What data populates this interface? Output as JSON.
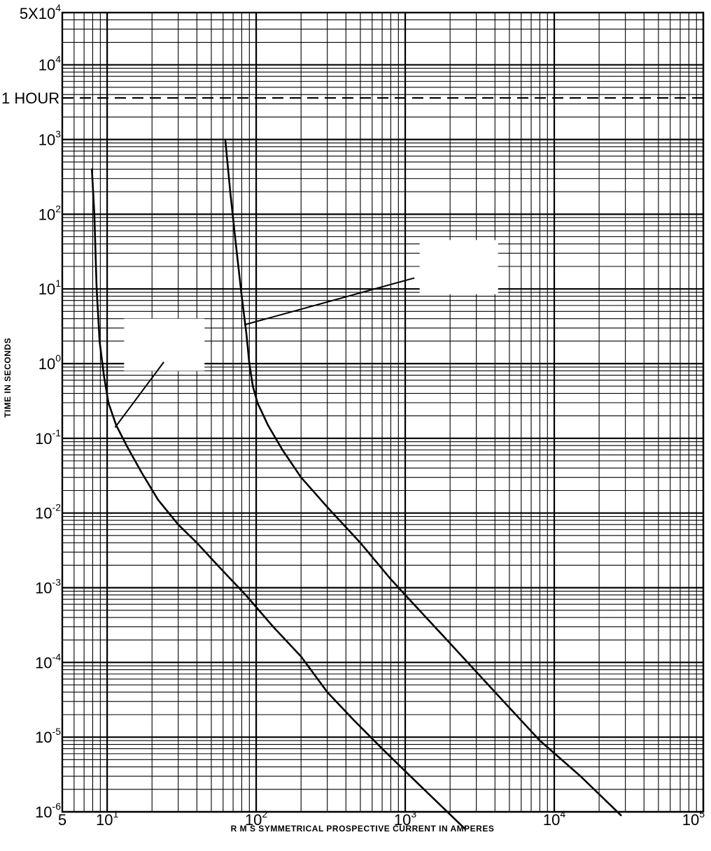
{
  "chart_data": {
    "type": "line",
    "xscale": "log",
    "yscale": "log",
    "xlim": [
      5,
      100000
    ],
    "ylim": [
      1e-06,
      50000
    ],
    "xlabel": "R M S SYMMETRICAL PROSPECTIVE CURRENT IN AMPERES",
    "ylabel": "TIME IN SECONDS",
    "grid": true,
    "x_ticks": [
      {
        "value": 5,
        "base": "5",
        "exp": ""
      },
      {
        "value": 10,
        "base": "10",
        "exp": "1"
      },
      {
        "value": 100,
        "base": "10",
        "exp": "2"
      },
      {
        "value": 1000,
        "base": "10",
        "exp": "3"
      },
      {
        "value": 10000,
        "base": "10",
        "exp": "4"
      },
      {
        "value": 100000,
        "base": "10",
        "exp": "5"
      }
    ],
    "y_ticks": [
      {
        "value": 50000,
        "base": "5X10",
        "exp": "4"
      },
      {
        "value": 10000,
        "base": "10",
        "exp": "4"
      },
      {
        "value": 1000,
        "base": "10",
        "exp": "3"
      },
      {
        "value": 100,
        "base": "10",
        "exp": "2"
      },
      {
        "value": 10,
        "base": "10",
        "exp": "1"
      },
      {
        "value": 1,
        "base": "10",
        "exp": "0"
      },
      {
        "value": 0.1,
        "base": "10",
        "exp": "-1"
      },
      {
        "value": 0.01,
        "base": "10",
        "exp": "-2"
      },
      {
        "value": 0.001,
        "base": "10",
        "exp": "-3"
      },
      {
        "value": 0.0001,
        "base": "10",
        "exp": "-4"
      },
      {
        "value": 1e-05,
        "base": "10",
        "exp": "-5"
      },
      {
        "value": 1e-06,
        "base": "10",
        "exp": "-6"
      }
    ],
    "reference_lines": [
      {
        "label": "1 HOUR",
        "y": 3600,
        "style": "dashed"
      }
    ],
    "series": [
      {
        "x": [
          7.9,
          8.2,
          8.5,
          8.9,
          9.5,
          10.2,
          11.5,
          13.5,
          17,
          22,
          30,
          40,
          55,
          85,
          130,
          200,
          300,
          450,
          700,
          1000,
          1500,
          2500
        ],
        "y": [
          400,
          100,
          10,
          2,
          0.7,
          0.3,
          0.15,
          0.08,
          0.035,
          0.015,
          0.007,
          0.004,
          0.002,
          0.0008,
          0.0003,
          0.00012,
          4e-05,
          1.7e-05,
          7e-06,
          3.5e-06,
          1.6e-06,
          6e-07
        ]
      },
      {
        "x": [
          62,
          67,
          73,
          80,
          86,
          90,
          95,
          102,
          120,
          150,
          200,
          300,
          500,
          800,
          1000,
          2000,
          4000,
          8000,
          15000,
          28000
        ],
        "y": [
          1000,
          200,
          40,
          8,
          2.5,
          1,
          0.5,
          0.3,
          0.15,
          0.07,
          0.03,
          0.012,
          0.004,
          0.0013,
          0.0008,
          0.00018,
          4e-05,
          9e-06,
          3e-06,
          9e-07
        ]
      }
    ],
    "annotations": [
      {
        "from": [
          11.3,
          0.14
        ],
        "to": [
          24,
          1.05
        ]
      },
      {
        "from": [
          83,
          3.3
        ],
        "to": [
          1150,
          14
        ]
      }
    ]
  }
}
